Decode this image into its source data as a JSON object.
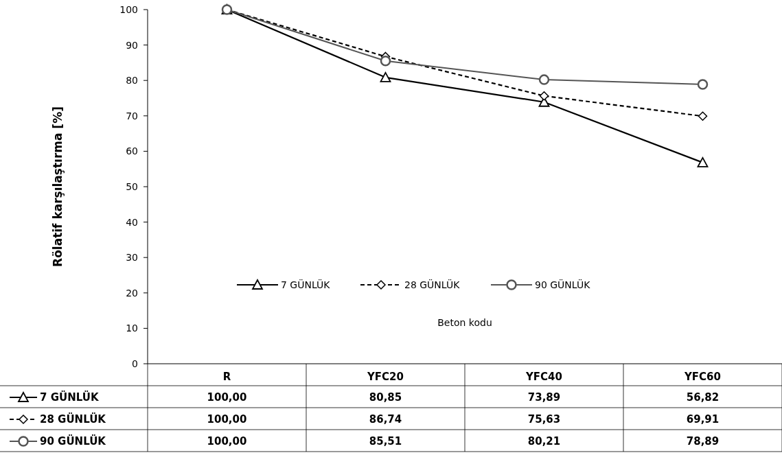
{
  "chart_data": {
    "type": "line",
    "xlabel": "Beton kodu",
    "ylabel": "Rölatif karşılaştırma [%]",
    "categories": [
      "R",
      "YFC20",
      "YFC40",
      "YFC60"
    ],
    "series": [
      {
        "name": "7 GÜNLÜK",
        "color": "#000000",
        "marker": "triangle",
        "line_style": "solid",
        "values": [
          100,
          80.85,
          73.89,
          56.82
        ],
        "value_labels": [
          "100,00",
          "80,85",
          "73,89",
          "56,82"
        ]
      },
      {
        "name": "28 GÜNLÜK",
        "color": "#000000",
        "marker": "diamond",
        "line_style": "dashed",
        "values": [
          100,
          86.74,
          75.63,
          69.91
        ],
        "value_labels": [
          "100,00",
          "86,74",
          "75,63",
          "69,91"
        ]
      },
      {
        "name": "90 GÜNLÜK",
        "color": "#555555",
        "marker": "circle",
        "line_style": "solid",
        "values": [
          100,
          85.51,
          80.21,
          78.89
        ],
        "value_labels": [
          "100,00",
          "85,51",
          "80,21",
          "78,89"
        ]
      }
    ],
    "ylim": [
      0,
      100
    ],
    "yticks": [
      0,
      10,
      20,
      30,
      40,
      50,
      60,
      70,
      80,
      90,
      100
    ],
    "grid": false,
    "legend": "bottom"
  }
}
